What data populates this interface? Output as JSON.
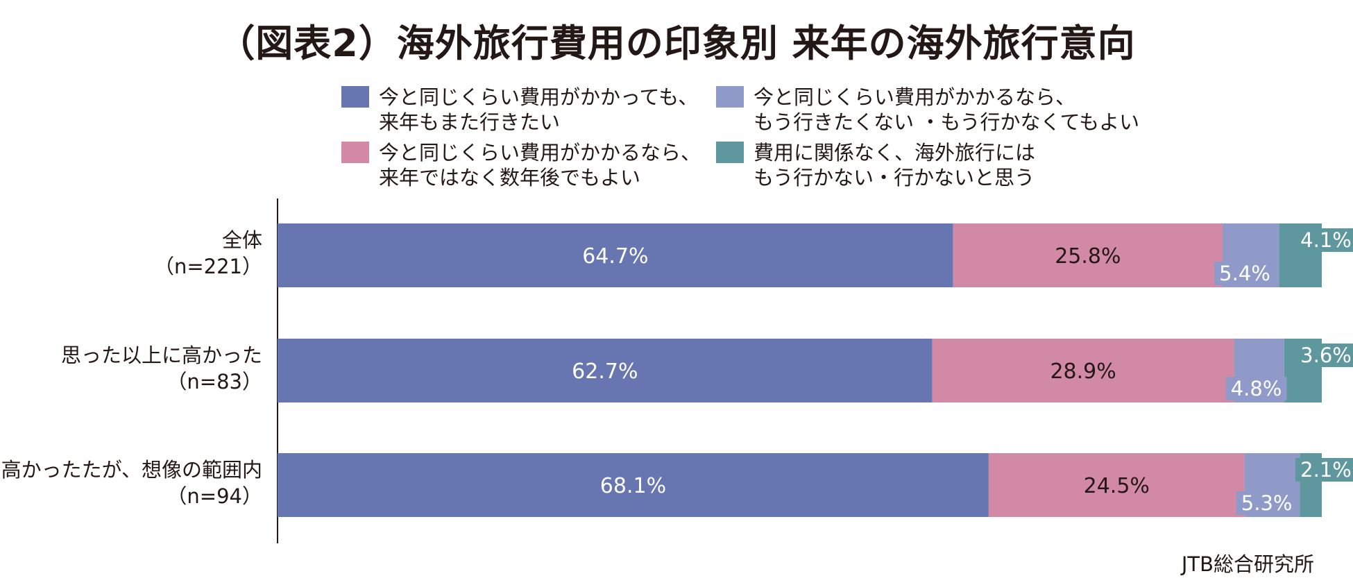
{
  "title": "（図表2）海外旅行費用の印象別 来年の海外旅行意向",
  "source": "JTB総合研究所",
  "colors": {
    "again_next_year": "#6776b1",
    "few_years_later": "#d289a6",
    "not_go_same_cost": "#8f9ac9",
    "never_go": "#5e989e"
  },
  "legend": [
    {
      "lines": [
        "今と同じくらい費用がかかっても、",
        "来年もまた行きたい"
      ],
      "color": "#6776b1"
    },
    {
      "lines": [
        "今と同じくらい費用がかかるなら、",
        "もう行きたくない ・もう行かなくてもよい"
      ],
      "color": "#8f9ac9"
    },
    {
      "lines": [
        "今と同じくらい費用がかかるなら、",
        "来年ではなく数年後でもよい"
      ],
      "color": "#d289a6"
    },
    {
      "lines": [
        "費用に関係なく、海外旅行には",
        "もう行かない・行かないと思う"
      ],
      "color": "#5e989e"
    }
  ],
  "chart_data": {
    "type": "bar",
    "orientation": "horizontal",
    "stacked": true,
    "percent": true,
    "categories": [
      [
        "全体",
        "（n=221）"
      ],
      [
        "思った以上に高かった",
        "（n=83）"
      ],
      [
        "高かったたが、想像の範囲内",
        "（n=94）"
      ]
    ],
    "series": [
      {
        "name": "今と同じくらい費用がかかっても、来年もまた行きたい",
        "values": [
          64.7,
          62.7,
          68.1
        ],
        "labels": [
          "64.7%",
          "62.7%",
          "68.1%"
        ],
        "color": "#6776b1",
        "label_color": "#ffffff"
      },
      {
        "name": "今と同じくらい費用がかかるなら、来年ではなく数年後でもよい",
        "values": [
          25.8,
          28.9,
          24.5
        ],
        "labels": [
          "25.8%",
          "28.9%",
          "24.5%"
        ],
        "color": "#d289a6",
        "label_color": "#231815"
      },
      {
        "name": "今と同じくらい費用がかかるなら、もう行きたくない ・もう行かなくてもよい",
        "values": [
          5.4,
          4.8,
          5.3
        ],
        "labels": [
          "5.4%",
          "4.8%",
          "5.3%"
        ],
        "color": "#8f9ac9",
        "label_color": "#ffffff"
      },
      {
        "name": "費用に関係なく、海外旅行にはもう行かない・行かないと思う",
        "values": [
          4.1,
          3.6,
          2.1
        ],
        "labels": [
          "4.1%",
          "3.6%",
          "2.1%"
        ],
        "color": "#5e989e",
        "label_color": "#ffffff"
      }
    ],
    "xlim": [
      0,
      100
    ],
    "grid": false,
    "legend_position": "top"
  }
}
